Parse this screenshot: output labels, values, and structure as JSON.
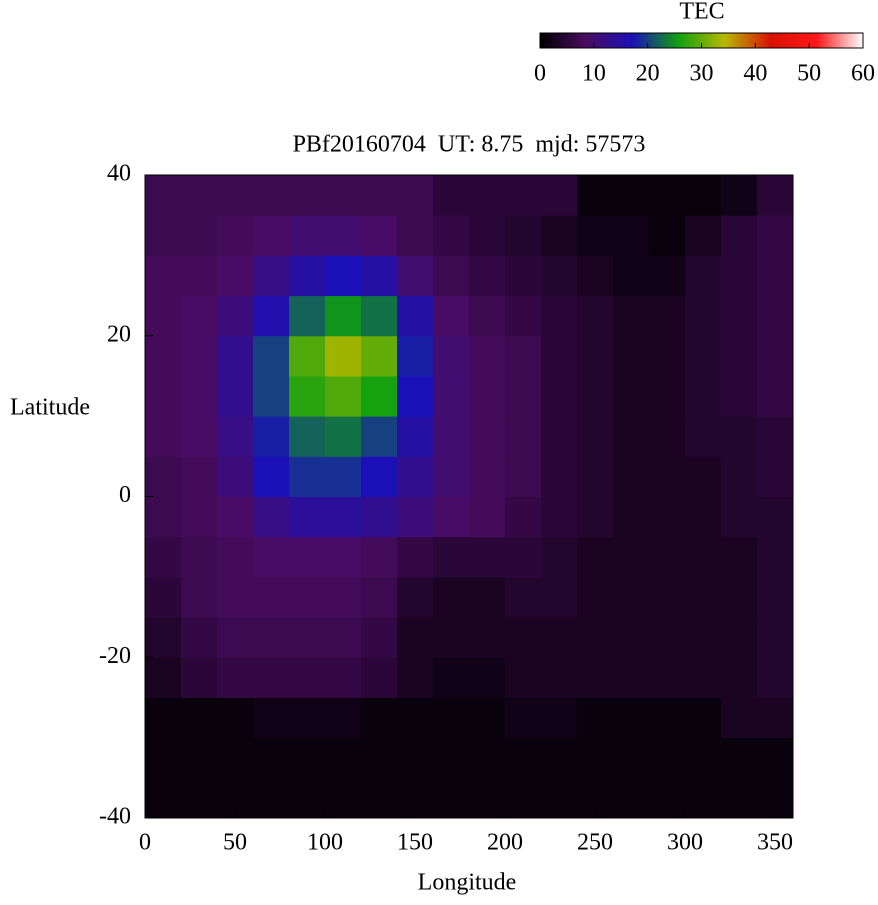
{
  "chart_data": {
    "type": "heatmap",
    "title": "PBf20160704  UT: 8.75  mjd: 57573",
    "x_label": "Longitude",
    "y_label": "Latitude",
    "colorbar_label": "TEC",
    "xlim": [
      0,
      360
    ],
    "xticks": [
      0,
      50,
      100,
      150,
      200,
      250,
      300,
      350
    ],
    "ylim": [
      -40,
      40
    ],
    "yticks": [
      -40,
      -20,
      0,
      20,
      40
    ],
    "zlim": [
      0,
      60
    ],
    "zticks": [
      0,
      10,
      20,
      30,
      40,
      50,
      60
    ],
    "colormap": [
      "#000000",
      "#4a0c62",
      "#1a10b8",
      "#10a010",
      "#b8b800",
      "#d81000",
      "#ff1818",
      "#ffffff"
    ],
    "x": [
      10,
      30,
      50,
      70,
      90,
      110,
      130,
      150,
      170,
      190,
      210,
      230,
      250,
      270,
      290,
      310,
      330,
      350
    ],
    "y": [
      -37.5,
      -32.5,
      -27.5,
      -22.5,
      -17.5,
      -12.5,
      -7.5,
      -2.5,
      2.5,
      7.5,
      12.5,
      17.5,
      22.5,
      27.5,
      32.5,
      37.5
    ],
    "values": [
      [
        1,
        1,
        1,
        1,
        1,
        1,
        1,
        1,
        1,
        1,
        1,
        1,
        1,
        1,
        1,
        1,
        1,
        1
      ],
      [
        1,
        1,
        1,
        1,
        1,
        1,
        1,
        1,
        1,
        1,
        1,
        1,
        1,
        1,
        1,
        1,
        1,
        1
      ],
      [
        1,
        1,
        1,
        2,
        2,
        2,
        1,
        1,
        1,
        1,
        2,
        2,
        1,
        1,
        1,
        1,
        3,
        3
      ],
      [
        3,
        5,
        6,
        6,
        6,
        6,
        5,
        3,
        2,
        2,
        3,
        3,
        3,
        3,
        3,
        3,
        3,
        4
      ],
      [
        4,
        6,
        7,
        7,
        7,
        7,
        6,
        3,
        3,
        3,
        3,
        3,
        3,
        3,
        3,
        3,
        3,
        4
      ],
      [
        5,
        7,
        8,
        8,
        8,
        8,
        7,
        4,
        3,
        3,
        4,
        4,
        3,
        3,
        3,
        3,
        3,
        4
      ],
      [
        6,
        7,
        8,
        9,
        9,
        9,
        8,
        6,
        5,
        5,
        5,
        4,
        3,
        3,
        3,
        3,
        3,
        4
      ],
      [
        7,
        8,
        9,
        12,
        14,
        14,
        13,
        11,
        9,
        8,
        6,
        5,
        4,
        3,
        3,
        3,
        4,
        4
      ],
      [
        7,
        8,
        11,
        17,
        19,
        19,
        17,
        13,
        10,
        8,
        7,
        5,
        4,
        3,
        3,
        3,
        4,
        5
      ],
      [
        8,
        9,
        12,
        18,
        22,
        23,
        20,
        15,
        10,
        8,
        7,
        5,
        4,
        3,
        3,
        4,
        4,
        5
      ],
      [
        8,
        9,
        13,
        20,
        27,
        29,
        26,
        17,
        10,
        8,
        7,
        5,
        4,
        3,
        3,
        4,
        5,
        6
      ],
      [
        8,
        9,
        13,
        20,
        29,
        33,
        30,
        18,
        10,
        8,
        7,
        5,
        4,
        3,
        3,
        4,
        5,
        6
      ],
      [
        8,
        9,
        11,
        16,
        22,
        25,
        23,
        15,
        9,
        7,
        6,
        5,
        4,
        3,
        3,
        4,
        5,
        6
      ],
      [
        8,
        8,
        9,
        12,
        15,
        17,
        15,
        10,
        7,
        6,
        5,
        4,
        3,
        2,
        2,
        4,
        5,
        6
      ],
      [
        7,
        7,
        8,
        9,
        10,
        10,
        9,
        7,
        6,
        5,
        4,
        3,
        2,
        2,
        1,
        3,
        5,
        6
      ],
      [
        7,
        7,
        7,
        7,
        7,
        7,
        7,
        7,
        5,
        5,
        5,
        5,
        1,
        1,
        1,
        1,
        2,
        5
      ]
    ]
  }
}
